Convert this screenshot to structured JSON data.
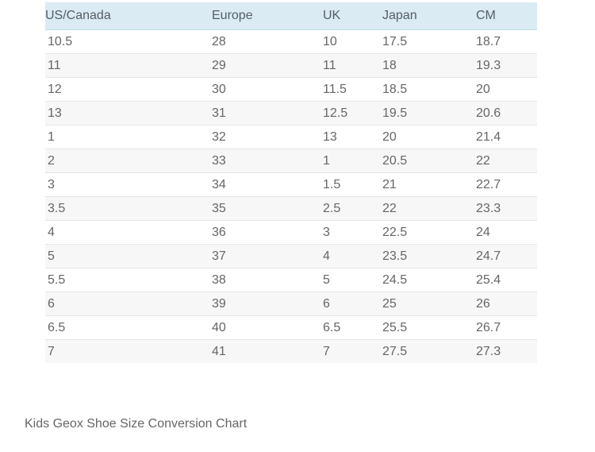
{
  "table": {
    "headers": [
      "US/Canada",
      "Europe",
      "UK",
      "Japan",
      "CM"
    ],
    "rows": [
      [
        "10.5",
        "28",
        "10",
        "17.5",
        "18.7"
      ],
      [
        "11",
        "29",
        "11",
        "18",
        "19.3"
      ],
      [
        "12",
        "30",
        "11.5",
        "18.5",
        "20"
      ],
      [
        "13",
        "31",
        "12.5",
        "19.5",
        "20.6"
      ],
      [
        "1",
        "32",
        "13",
        "20",
        "21.4"
      ],
      [
        "2",
        "33",
        "1",
        "20.5",
        "22"
      ],
      [
        "3",
        "34",
        "1.5",
        "21",
        "22.7"
      ],
      [
        "3.5",
        "35",
        "2.5",
        "22",
        "23.3"
      ],
      [
        "4",
        "36",
        "3",
        "22.5",
        "24"
      ],
      [
        "5",
        "37",
        "4",
        "23.5",
        "24.7"
      ],
      [
        "5.5",
        "38",
        "5",
        "24.5",
        "25.4"
      ],
      [
        "6",
        "39",
        "6",
        "25",
        "26"
      ],
      [
        "6.5",
        "40",
        "6.5",
        "25.5",
        "26.7"
      ],
      [
        "7",
        "41",
        "7",
        "27.5",
        "27.3"
      ]
    ]
  },
  "caption": "Kids Geox Shoe Size Conversion Chart",
  "colors": {
    "header_bg": "#daebf4",
    "stripe_bg": "#f7f7f7",
    "text": "#666666"
  }
}
